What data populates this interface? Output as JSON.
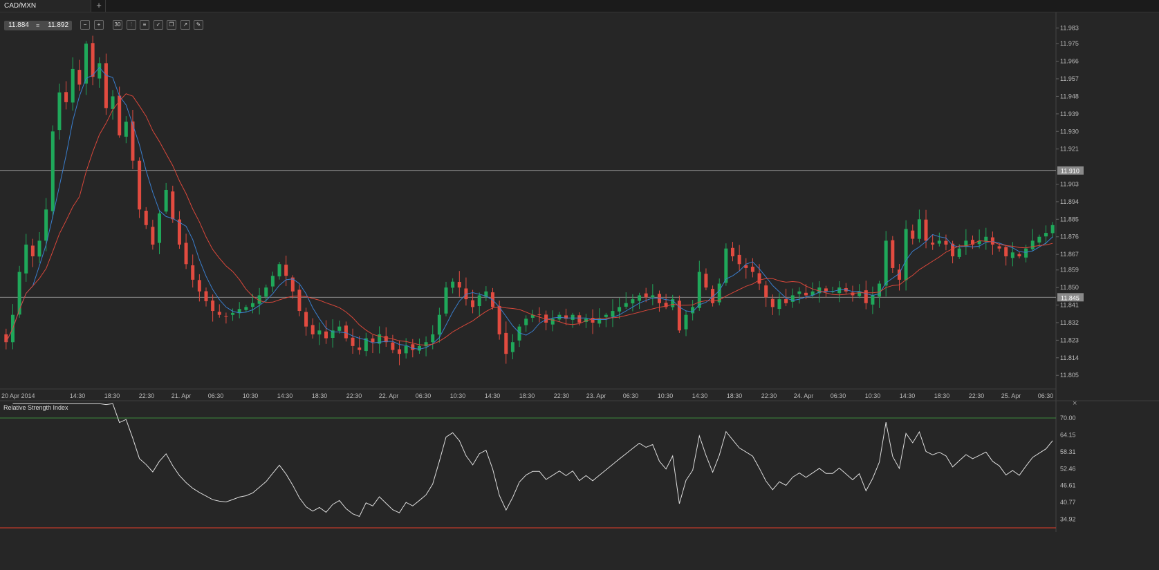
{
  "tab": {
    "title": "CAD/MXN",
    "add_label": "+"
  },
  "quote": {
    "bid": "11.884",
    "ask": "11.892",
    "separator": "≡"
  },
  "toolbar": [
    {
      "name": "zoom-out-icon",
      "glyph": "−"
    },
    {
      "name": "zoom-in-icon",
      "glyph": "+"
    },
    {
      "name": "timeframe-button",
      "glyph": "30"
    },
    {
      "name": "chart-type-icon",
      "glyph": "⫶"
    },
    {
      "name": "indicators-icon",
      "glyph": "≡"
    },
    {
      "name": "template-icon",
      "glyph": "✓"
    },
    {
      "name": "copy-icon",
      "glyph": "❐"
    },
    {
      "name": "export-icon",
      "glyph": "↗"
    },
    {
      "name": "draw-icon",
      "glyph": "✎"
    }
  ],
  "price_axis": {
    "ticks": [
      "11.983",
      "11.975",
      "11.966",
      "11.957",
      "11.948",
      "11.939",
      "11.930",
      "11.921",
      "11.903",
      "11.894",
      "11.885",
      "11.876",
      "11.867",
      "11.859",
      "11.850",
      "11.841",
      "11.832",
      "11.823",
      "11.814",
      "11.805"
    ],
    "markers": [
      "11.910",
      "11.845"
    ]
  },
  "time_axis": {
    "labels": [
      "20 Apr 2014",
      "14:30",
      "18:30",
      "22:30",
      "21. Apr",
      "06:30",
      "10:30",
      "14:30",
      "18:30",
      "22:30",
      "22. Apr",
      "06:30",
      "10:30",
      "14:30",
      "18:30",
      "22:30",
      "23. Apr",
      "06:30",
      "10:30",
      "14:30",
      "18:30",
      "22:30",
      "24. Apr",
      "06:30",
      "10:30",
      "14:30",
      "18:30",
      "22:30",
      "25. Apr",
      "06:30"
    ]
  },
  "rsi": {
    "title": "Relative Strength Index",
    "close_label": "×",
    "ticks": [
      "70.00",
      "64.15",
      "58.31",
      "52.46",
      "46.61",
      "40.77",
      "34.92"
    ]
  },
  "colors": {
    "up": "#1fa85a",
    "down": "#e24b40",
    "fast_ma": "#3a7fcf",
    "slow_ma": "#d9473a",
    "rsi_line": "#dddddd",
    "rsi_upper": "#3e8a3e",
    "rsi_lower": "#c0392b",
    "hline": "#cfcfcf"
  },
  "chart_data": {
    "type": "candlestick",
    "symbol": "CAD/MXN",
    "ylim": [
      11.798,
      11.991
    ],
    "horizontal_levels": [
      11.91,
      11.845
    ],
    "rsi_ylim": [
      30.5,
      76
    ],
    "rsi_levels": [
      70,
      30
    ],
    "closes": [
      11.822,
      11.836,
      11.858,
      11.872,
      11.866,
      11.874,
      11.89,
      11.93,
      11.95,
      11.945,
      11.962,
      11.954,
      11.975,
      11.958,
      11.965,
      11.942,
      11.948,
      11.928,
      11.935,
      11.915,
      11.89,
      11.882,
      11.872,
      11.888,
      11.9,
      11.885,
      11.872,
      11.862,
      11.854,
      11.848,
      11.843,
      11.838,
      11.836,
      11.835,
      11.837,
      11.839,
      11.84,
      11.842,
      11.846,
      11.85,
      11.856,
      11.862,
      11.856,
      11.848,
      11.838,
      11.83,
      11.826,
      11.828,
      11.824,
      11.828,
      11.83,
      11.824,
      11.82,
      11.818,
      11.824,
      11.822,
      11.826,
      11.822,
      11.818,
      11.816,
      11.82,
      11.818,
      11.82,
      11.822,
      11.826,
      11.836,
      11.85,
      11.853,
      11.85,
      11.844,
      11.84,
      11.846,
      11.848,
      11.84,
      11.826,
      11.816,
      11.822,
      11.83,
      11.834,
      11.836,
      11.836,
      11.832,
      11.834,
      11.836,
      11.834,
      11.836,
      11.832,
      11.834,
      11.832,
      11.834,
      11.836,
      11.838,
      11.84,
      11.842,
      11.844,
      11.846,
      11.845,
      11.846,
      11.842,
      11.84,
      11.844,
      11.828,
      11.836,
      11.84,
      11.858,
      11.85,
      11.842,
      11.852,
      11.87,
      11.866,
      11.862,
      11.86,
      11.858,
      11.852,
      11.845,
      11.84,
      11.844,
      11.842,
      11.846,
      11.848,
      11.846,
      11.848,
      11.85,
      11.848,
      11.848,
      11.85,
      11.848,
      11.846,
      11.848,
      11.842,
      11.846,
      11.852,
      11.874,
      11.86,
      11.854,
      11.88,
      11.875,
      11.885,
      11.874,
      11.872,
      11.874,
      11.872,
      11.866,
      11.87,
      11.874,
      11.872,
      11.874,
      11.876,
      11.872,
      11.87,
      11.866,
      11.868,
      11.866,
      11.87,
      11.874,
      11.876,
      11.878,
      11.882
    ]
  }
}
